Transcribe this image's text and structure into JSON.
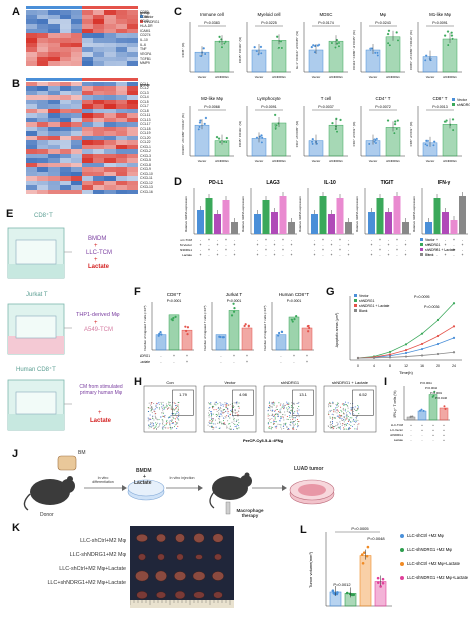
{
  "panels": [
    "A",
    "B",
    "C",
    "D",
    "E",
    "F",
    "G",
    "H",
    "I",
    "J",
    "K",
    "L"
  ],
  "heatmap_A": {
    "legend": [
      "group",
      "Vector",
      "shNDRG1"
    ],
    "rows": [
      "CD80",
      "CD86",
      "CD40",
      "HLA-DR",
      "ICAM1",
      "CD274",
      "IL-10",
      "IL-6",
      "TNF",
      "VEGFA",
      "TGFB1",
      "MMP9"
    ]
  },
  "heatmap_B": {
    "legend": [
      "group",
      "Vector",
      "shNDRG1"
    ],
    "rows": [
      "CCL1",
      "CCL2",
      "CCL3",
      "CCL4",
      "CCL5",
      "CCL7",
      "CCL8",
      "CCL11",
      "CCL13",
      "CCL17",
      "CCL18",
      "CCL19",
      "CCL20",
      "CCL22",
      "CXCL1",
      "CXCL2",
      "CXCL3",
      "CXCL5",
      "CXCL8",
      "CXCL9",
      "CXCL10",
      "CXCL11",
      "CXCL12",
      "CXCL13",
      "CXCL16"
    ]
  },
  "panel_C": {
    "row1_titles": [
      "Immune cell",
      "Myeloid cell",
      "MDSC",
      "Mφ",
      "M1-like Mφ"
    ],
    "row1_ylabels": [
      "CD45⁺ (%)",
      "CD45⁺ CD11b⁺ (%)",
      "Gr-1⁺ CD11b⁺ of CD45⁺ (%)",
      "CD11b⁺ F4/80⁺ of CD45⁺ (%)",
      "CD86⁺ of F4/80⁺ CD11b⁺ (%)"
    ],
    "row1_p": [
      "P=0.0383",
      "P=0.0225",
      "P=0.0174",
      "P=0.0243",
      "P=0.0091"
    ],
    "row2_titles": [
      "M2-like Mφ",
      "Lymphocyte",
      "T cell",
      "CD4⁺ T",
      "CD8⁺ T"
    ],
    "row2_ylabels": [
      "CD206⁺ of F4/80⁺ CD11b⁺ (%)",
      "CD45⁺ CD11b⁻ (%)",
      "CD3⁺ of CD45⁺ (%)",
      "CD4⁺ of CD3⁺ (%)",
      "CD8⁺ of CD3⁺ (%)"
    ],
    "row2_p": [
      "P=0.0068",
      "P=0.0091",
      "P=0.0037",
      "P=0.0072",
      "P=0.0013"
    ],
    "xticks": [
      "Vector",
      "shNDRG1"
    ],
    "legend": [
      "Vector",
      "shNDRG1"
    ]
  },
  "panel_D": {
    "titles": [
      "PD-L1",
      "LAG3",
      "IL-10",
      "TIGIT",
      "IFN-γ"
    ],
    "ylabel": "Relative mRNA expression",
    "legend": [
      "Vector",
      "shNDRG1",
      "shNDRG1 + Lactate",
      "Blank"
    ],
    "row_labels": [
      "LLC-TCM",
      "BMDM-Vector",
      "BMDM-shNDRG1",
      "Lactate"
    ]
  },
  "panel_E": {
    "cd8": "CD8⁺T",
    "bmdm": "BMDM",
    "plus1": "+",
    "llc": "LLC-TCM",
    "lactate": "Lactate",
    "jurkat": "Jurkat T",
    "thp1": "THP1-derived Mφ",
    "a549": "A549-TCM",
    "human": "Human CD8⁺T",
    "cm": "CM from stimulated primary human Mφ"
  },
  "panel_F": {
    "titles": [
      "CD8⁺T",
      "Jurkat T",
      "Human CD8⁺T"
    ],
    "ylabel": "Number of migrated T cells (×10⁴)",
    "row_labels": [
      "shNDRG1",
      "Lactate"
    ],
    "p": [
      "P<0.0001",
      "P<0.0001",
      "P=0.0001"
    ]
  },
  "panel_G": {
    "legend": [
      "Vector",
      "shNDRG1",
      "shNDRG1 + Lactate",
      "Blank"
    ],
    "ylabel": "Apoptotic areas (μm²)",
    "xlabel": "Time(h)",
    "xticks": [
      "0",
      "4",
      "8",
      "12",
      "16",
      "20",
      "24"
    ],
    "p": [
      "P=0.0095",
      "P=0.0036"
    ]
  },
  "panel_H": {
    "plots": [
      "Con",
      "Vector",
      "shNDRG1",
      "shNDRG1 + Lactate"
    ],
    "values": [
      "1.79",
      "4.98",
      "13.1",
      "6.52"
    ],
    "xlabel": "PerCP-Cy5-5-A::IFNg"
  },
  "panel_I": {
    "ylabel": "IFN-γ⁺ T cells (%)",
    "row_labels": [
      "LLC-TCM",
      "LLC-Vector",
      "LLC-shNDRG1",
      "Lactate"
    ],
    "p": [
      "P=0.0011",
      "P=0.0042",
      "P<0.0001",
      "P=0.0146"
    ]
  },
  "panel_J": {
    "bm": "BM",
    "donor": "Donor",
    "step1": "In vitro differentiation",
    "bmdm": "BMDM",
    "plus": "+",
    "lactate": "Lactate",
    "step2": "In vitro injection",
    "tumor": "LUAD tumor",
    "therapy": "Macrophage therapy"
  },
  "panel_K": {
    "labels": [
      "LLC-shCtrl+M2 Mφ",
      "LLC-shNDRG1+M2 Mφ",
      "LLC-shCtrl+M2 Mφ+Lactate",
      "LLC+shNDRG1+M2 Mφ+Lactate"
    ]
  },
  "panel_L": {
    "ylabel": "Tumor volume(mm³)",
    "p": [
      "P=0.0005",
      "P=0.0012",
      "P=0.0048"
    ],
    "legend": [
      "LLC-shCtrl +M2 Mφ",
      "LLC-shNDRG1 +M2 Mφ",
      "LLC-shCtrl +M2 Mφ+Lactate",
      "LLC-shNDRG1 +M2 Mφ+Lactate"
    ],
    "colors": [
      "#4a90d9",
      "#2e9e4e",
      "#f08a24",
      "#e0409a"
    ]
  },
  "colors": {
    "vector": "#4a8fd8",
    "shNDRG1": "#3aa85a",
    "lactate": "#b04ab8",
    "blank": "#888888",
    "heat_red": "#d73027",
    "heat_blue": "#2c63b5"
  }
}
